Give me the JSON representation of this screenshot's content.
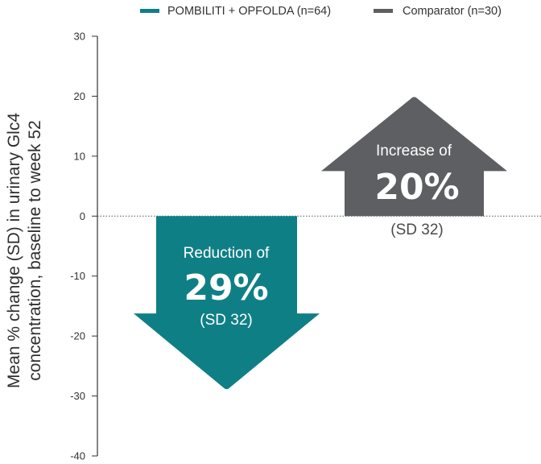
{
  "chart_data": {
    "type": "bar",
    "title": "",
    "xlabel": "",
    "ylabel_lines": [
      "Mean % change (SD) in urinary Glc4",
      "concentration, baseline to week 52"
    ],
    "ylim": [
      -40,
      30
    ],
    "yticks": [
      30,
      20,
      10,
      0,
      -10,
      -20,
      -30,
      -40
    ],
    "ytick_labels": [
      "30",
      "20",
      "10",
      "0",
      "-10",
      "-20",
      "-30",
      "-40"
    ],
    "legend_position": "top-right",
    "series": [
      {
        "name": "POMBILITI + OPFOLDA (n=64)",
        "color": "#0f7f86",
        "value": -29,
        "sd": 32,
        "shape": "down-arrow",
        "annotation_label": "Reduction of",
        "annotation_value": "29%",
        "annotation_sd": "(SD 32)"
      },
      {
        "name": "Comparator (n=30)",
        "color": "#5d5f62",
        "value": 20,
        "sd": 32,
        "shape": "up-arrow",
        "annotation_label": "Increase of",
        "annotation_value": "20%",
        "annotation_sd": "(SD 32)"
      }
    ]
  }
}
